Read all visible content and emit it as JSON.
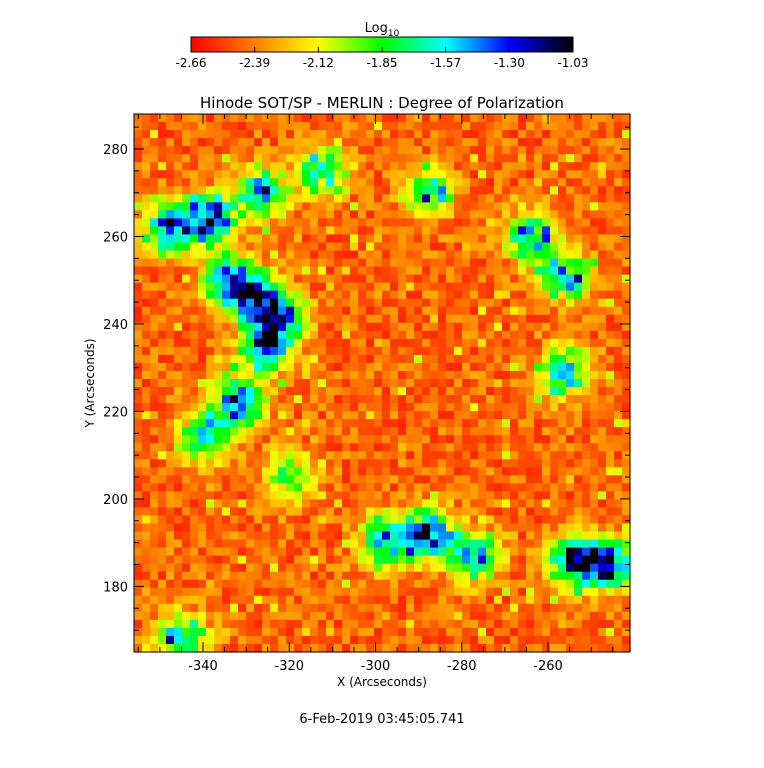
{
  "chart_data": {
    "type": "heatmap",
    "title": "Hinode SOT/SP - MERLIN : Degree of Polarization",
    "xlabel": "X (Arcseconds)",
    "ylabel": "Y (Arcseconds)",
    "xlim": [
      -356,
      -241
    ],
    "ylim": [
      165,
      288
    ],
    "x_ticks": [
      -340,
      -320,
      -300,
      -280,
      -260
    ],
    "y_ticks": [
      180,
      200,
      220,
      240,
      260,
      280
    ],
    "colorbar": {
      "label_base": "Log",
      "label_sub": "10",
      "range": [
        -2.66,
        -1.03
      ],
      "ticks": [
        "-2.66",
        "-2.39",
        "-2.12",
        "-1.85",
        "-1.57",
        "-1.30",
        "-1.03"
      ],
      "colormap": [
        "#ff0000",
        "#ff7f00",
        "#ffff00",
        "#00ff00",
        "#00ffff",
        "#0000ff",
        "#000000"
      ]
    },
    "strong_regions": [
      {
        "x": -348,
        "y": 262,
        "level": 0.9
      },
      {
        "x": -338,
        "y": 264,
        "level": 1.0
      },
      {
        "x": -334,
        "y": 250,
        "level": 0.85
      },
      {
        "x": -328,
        "y": 246,
        "level": 0.9
      },
      {
        "x": -322,
        "y": 241,
        "level": 0.95
      },
      {
        "x": -326,
        "y": 234,
        "level": 0.8
      },
      {
        "x": -332,
        "y": 222,
        "level": 0.9
      },
      {
        "x": -340,
        "y": 214,
        "level": 0.7
      },
      {
        "x": -326,
        "y": 270,
        "level": 0.75
      },
      {
        "x": -312,
        "y": 275,
        "level": 0.65
      },
      {
        "x": -288,
        "y": 270,
        "level": 0.6
      },
      {
        "x": -264,
        "y": 260,
        "level": 0.7
      },
      {
        "x": -256,
        "y": 251,
        "level": 0.75
      },
      {
        "x": -256,
        "y": 229,
        "level": 0.7
      },
      {
        "x": -288,
        "y": 192,
        "level": 1.0
      },
      {
        "x": -298,
        "y": 190,
        "level": 0.75
      },
      {
        "x": -277,
        "y": 187,
        "level": 0.8
      },
      {
        "x": -254,
        "y": 186,
        "level": 0.95
      },
      {
        "x": -246,
        "y": 185,
        "level": 0.9
      },
      {
        "x": -345,
        "y": 168,
        "level": 0.7
      },
      {
        "x": -320,
        "y": 205,
        "level": 0.5
      }
    ]
  },
  "timestamp": "6-Feb-2019 03:45:05.741"
}
